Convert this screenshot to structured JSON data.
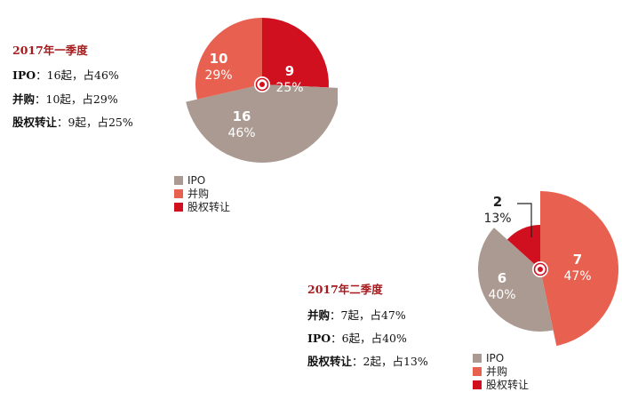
{
  "chart_data": [
    {
      "type": "pie",
      "title": "2017年一季度",
      "slices": [
        {
          "name": "IPO",
          "value": 16,
          "pct": "46%",
          "color": "#ab9a91"
        },
        {
          "name": "并购",
          "value": 10,
          "pct": "29%",
          "color": "#e8604f"
        },
        {
          "name": "股权转让",
          "value": 9,
          "pct": "25%",
          "color": "#d0101f"
        }
      ],
      "lines": [
        {
          "label": "IPO",
          "text": "：16起，占46%"
        },
        {
          "label": "并购",
          "text": "：10起，占29%"
        },
        {
          "label": "股权转让",
          "text": "：9起，占25%"
        }
      ],
      "legend": [
        "IPO",
        "并购",
        "股权转让"
      ]
    },
    {
      "type": "pie",
      "title": "2017年二季度",
      "slices": [
        {
          "name": "IPO",
          "value": 6,
          "pct": "40%",
          "color": "#ab9a91"
        },
        {
          "name": "并购",
          "value": 7,
          "pct": "47%",
          "color": "#e8604f"
        },
        {
          "name": "股权转让",
          "value": 2,
          "pct": "13%",
          "color": "#d0101f"
        }
      ],
      "lines": [
        {
          "label": "并购",
          "text": "：7起，占47%"
        },
        {
          "label": "IPO",
          "text": "：6起，占40%"
        },
        {
          "label": "股权转让",
          "text": "：2起，占13%"
        }
      ],
      "legend": [
        "IPO",
        "并购",
        "股权转让"
      ]
    }
  ]
}
